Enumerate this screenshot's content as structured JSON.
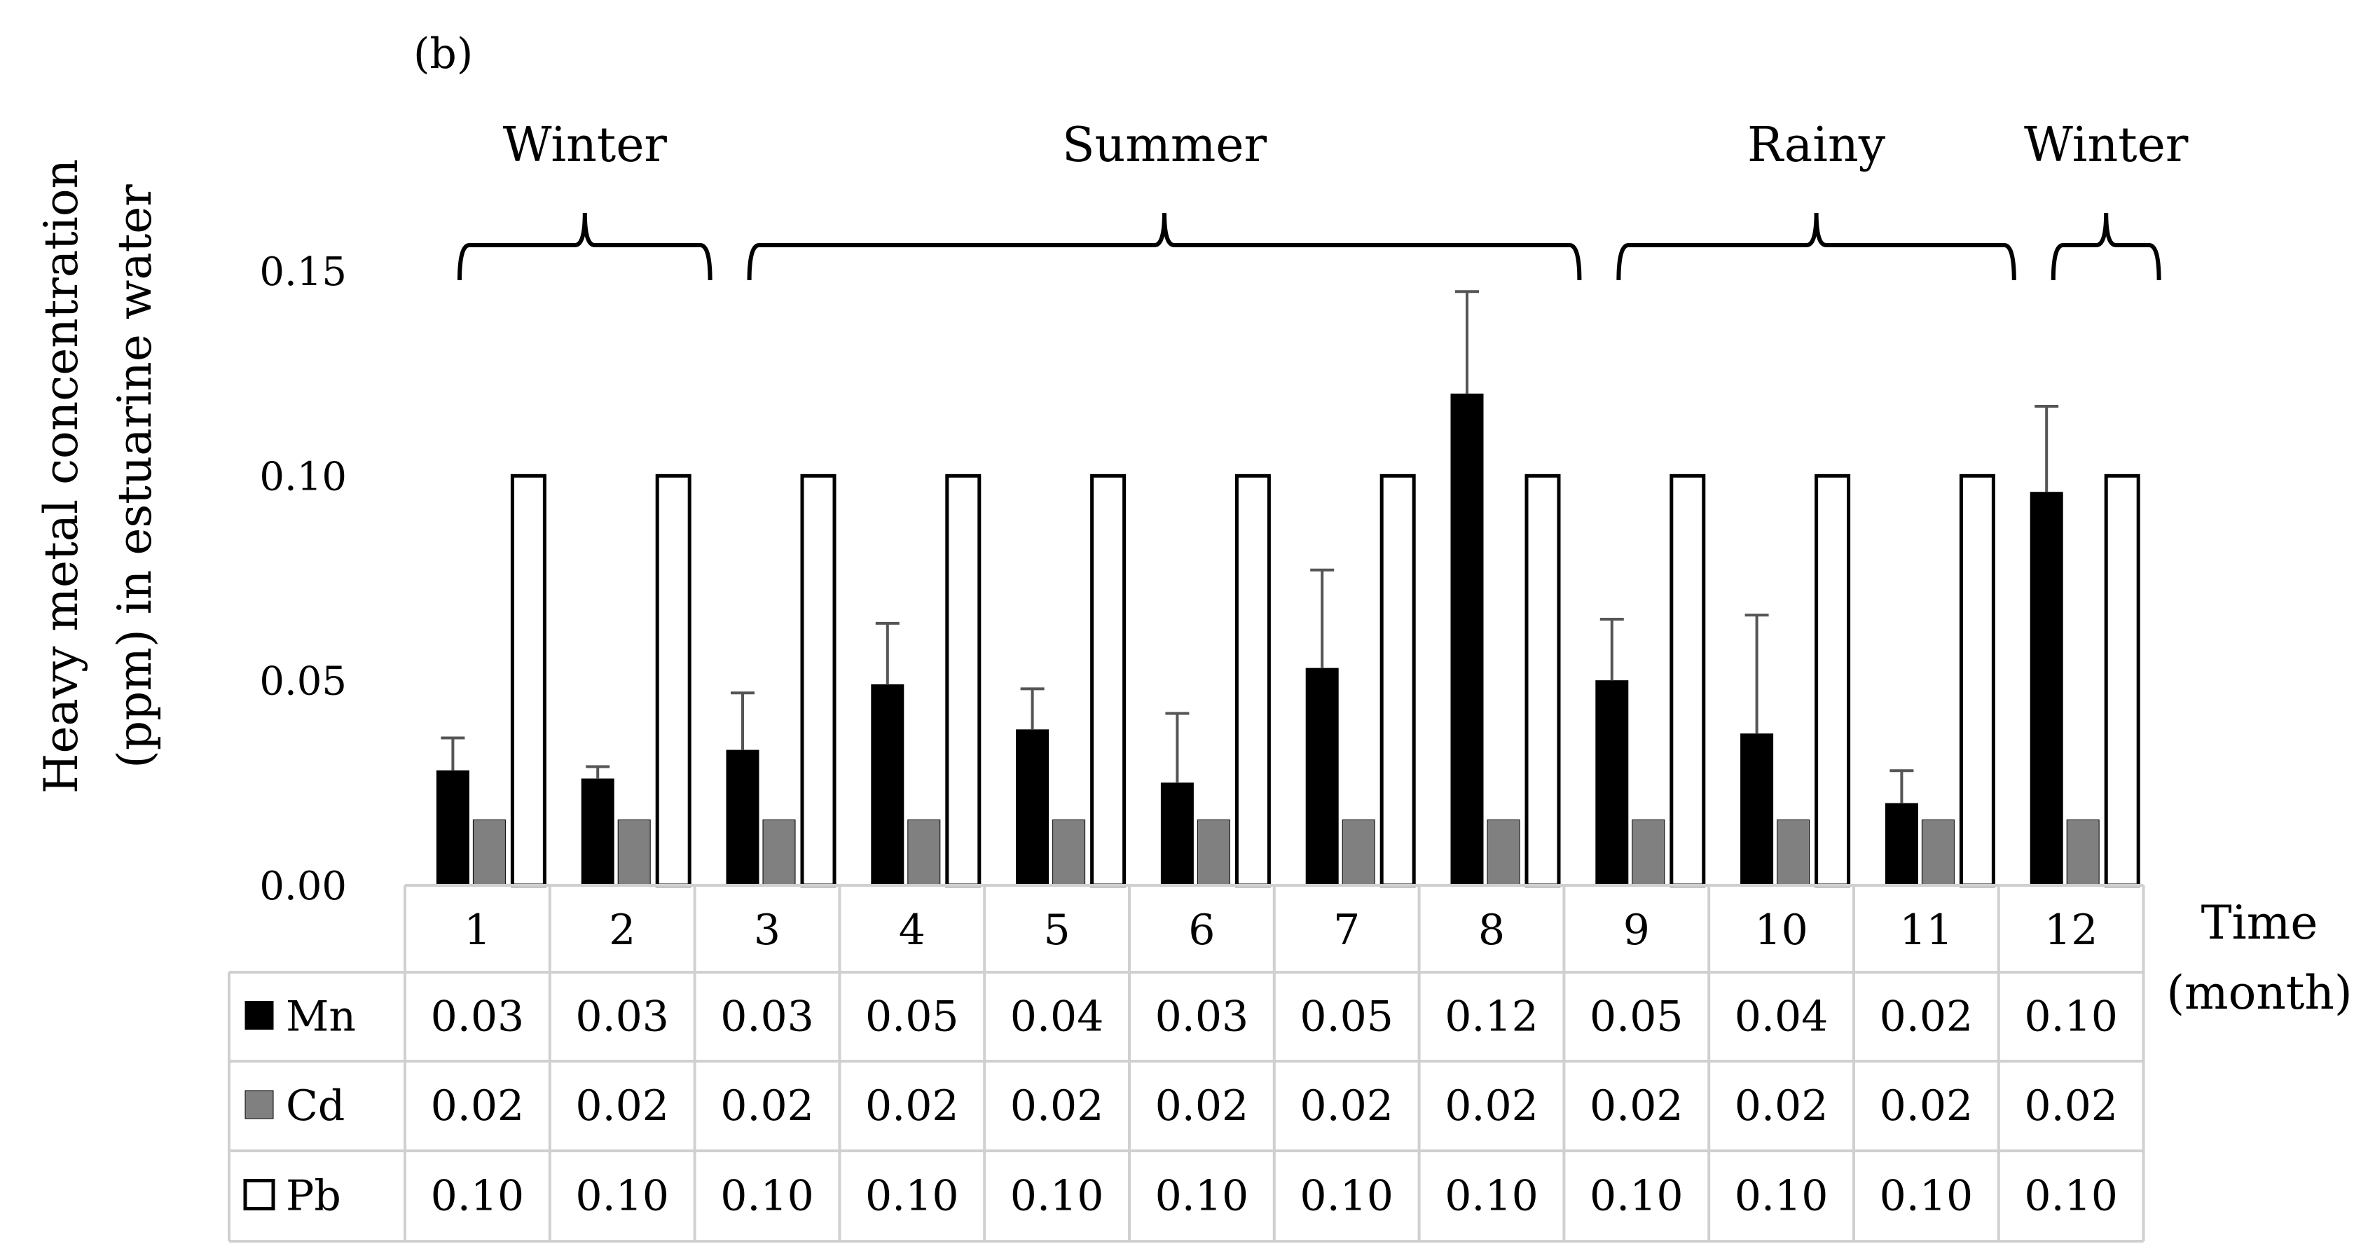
{
  "chart_data": {
    "type": "bar",
    "panel_label": "(b)",
    "ylabel_line1": "Heavy metal concentration",
    "ylabel_line2": "(ppm) in estuarine water",
    "xlabel_line1": "Time",
    "xlabel_line2": "(month)",
    "ylim": [
      0,
      0.15
    ],
    "yticks": [
      "0.00",
      "0.05",
      "0.10",
      "0.15"
    ],
    "ytick_values": [
      0,
      0.05,
      0.1,
      0.15
    ],
    "categories": [
      "1",
      "2",
      "3",
      "4",
      "5",
      "6",
      "7",
      "8",
      "9",
      "10",
      "11",
      "12"
    ],
    "series": [
      {
        "name": "Mn",
        "color": "#000000",
        "values": [
          0.028,
          0.026,
          0.033,
          0.049,
          0.038,
          0.025,
          0.053,
          0.12,
          0.05,
          0.037,
          0.02,
          0.096
        ],
        "errors": [
          0.008,
          0.003,
          0.014,
          0.015,
          0.01,
          0.017,
          0.024,
          0.025,
          0.015,
          0.029,
          0.008,
          0.021
        ],
        "table": [
          "0.03",
          "0.03",
          "0.03",
          "0.05",
          "0.04",
          "0.03",
          "0.05",
          "0.12",
          "0.05",
          "0.04",
          "0.02",
          "0.10"
        ]
      },
      {
        "name": "Cd",
        "color": "#808080",
        "values": [
          0.016,
          0.016,
          0.016,
          0.016,
          0.016,
          0.016,
          0.016,
          0.016,
          0.016,
          0.016,
          0.016,
          0.016
        ],
        "table": [
          "0.02",
          "0.02",
          "0.02",
          "0.02",
          "0.02",
          "0.02",
          "0.02",
          "0.02",
          "0.02",
          "0.02",
          "0.02",
          "0.02"
        ]
      },
      {
        "name": "Pb",
        "color": "#ffffff",
        "values": [
          0.1,
          0.1,
          0.1,
          0.1,
          0.1,
          0.1,
          0.1,
          0.1,
          0.1,
          0.1,
          0.1,
          0.1
        ],
        "table": [
          "0.10",
          "0.10",
          "0.10",
          "0.10",
          "0.10",
          "0.10",
          "0.10",
          "0.10",
          "0.10",
          "0.10",
          "0.10",
          "0.10"
        ]
      }
    ],
    "seasons": [
      {
        "label": "Winter",
        "start_month": 1,
        "end_month": 2
      },
      {
        "label": "Summer",
        "start_month": 3,
        "end_month": 8
      },
      {
        "label": "Rainy",
        "start_month": 9,
        "end_month": 11
      },
      {
        "label": "Winter",
        "start_month": 12,
        "end_month": 12
      }
    ]
  }
}
